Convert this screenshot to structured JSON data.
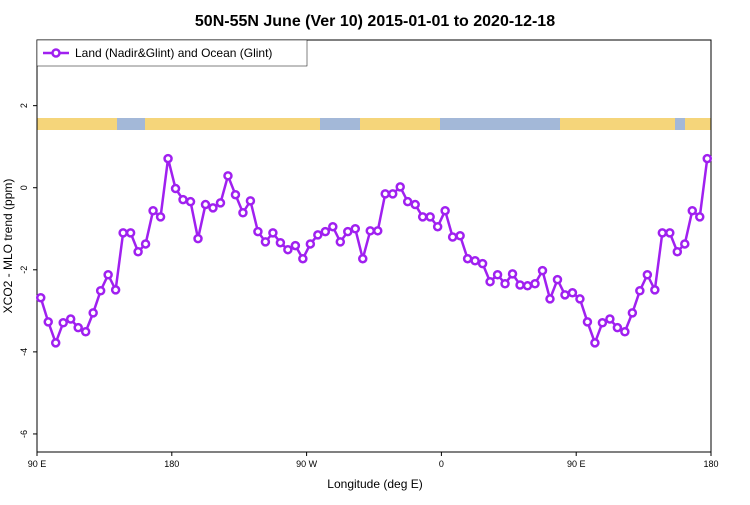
{
  "chart_data": {
    "type": "line",
    "title": "50N-55N June (Ver 10)   2015-01-01 to 2020-12-18",
    "x_label": "Longitude (deg E)",
    "y_label": "XCO2 - MLO trend (ppm)",
    "xlim": [
      90,
      540
    ],
    "ylim": [
      -6.44,
      3.6
    ],
    "xticks": [
      {
        "value": 90,
        "label": "90 E"
      },
      {
        "value": 180,
        "label": "180"
      },
      {
        "value": 270,
        "label": "90 W"
      },
      {
        "value": 360,
        "label": "0"
      },
      {
        "value": 450,
        "label": "90 E"
      },
      {
        "value": 540,
        "label": "180"
      }
    ],
    "yticks": [
      2,
      0,
      -2,
      -4,
      -6
    ],
    "legend_position": "top-left",
    "series": [
      {
        "name": "Land (Nadir&Glint) and Ocean (Glint)",
        "color": "#a020f0",
        "x": [
          92.5,
          97.5,
          102.5,
          107.5,
          112.5,
          117.5,
          122.5,
          127.5,
          132.5,
          137.5,
          142.5,
          147.5,
          152.5,
          157.5,
          162.5,
          167.5,
          172.5,
          177.5,
          182.5,
          187.5,
          192.5,
          197.5,
          202.5,
          207.5,
          212.5,
          217.5,
          222.5,
          227.5,
          232.5,
          237.5,
          242.5,
          247.5,
          252.5,
          257.5,
          262.5,
          267.5,
          272.5,
          277.5,
          282.5,
          287.5,
          292.5,
          297.5,
          302.5,
          307.5,
          312.5,
          317.5,
          322.5,
          327.5,
          332.5,
          337.5,
          342.5,
          347.5,
          352.5,
          357.5,
          362.5,
          367.5,
          372.5,
          377.5,
          382.5,
          387.5,
          392.5,
          397.5,
          402.5,
          407.5,
          412.5,
          417.5,
          422.5,
          427.5,
          432.5,
          437.5,
          442.5,
          447.5,
          452.5,
          457.5,
          462.5,
          467.5,
          472.5,
          477.5,
          482.5,
          487.5,
          492.5,
          497.5,
          502.5,
          507.5,
          512.5,
          517.5,
          522.5,
          527.5,
          532.5,
          537.5
        ],
        "values": [
          -2.68,
          -3.27,
          -3.78,
          -3.29,
          -3.2,
          -3.41,
          -3.51,
          -3.05,
          -2.51,
          -2.12,
          -2.49,
          -1.1,
          -1.1,
          -1.56,
          -1.37,
          -0.56,
          -0.71,
          0.71,
          -0.02,
          -0.29,
          -0.34,
          -1.24,
          -0.41,
          -0.49,
          -0.37,
          0.29,
          -0.17,
          -0.61,
          -0.32,
          -1.07,
          -1.32,
          -1.1,
          -1.34,
          -1.51,
          -1.41,
          -1.73,
          -1.37,
          -1.15,
          -1.07,
          -0.95,
          -1.32,
          -1.07,
          -1.0,
          -1.73,
          -1.05,
          -1.05,
          -0.15,
          -0.15,
          0.02,
          -0.34,
          -0.41,
          -0.71,
          -0.71,
          -0.95,
          -0.56,
          -1.2,
          -1.17,
          -1.73,
          -1.78,
          -1.85,
          -2.29,
          -2.12,
          -2.34,
          -2.1,
          -2.37,
          -2.39,
          -2.34,
          -2.02,
          -2.71,
          -2.24,
          -2.61,
          -2.56,
          -2.71,
          -3.27,
          -3.78,
          -3.29,
          -3.2,
          -3.41,
          -3.51,
          -3.05,
          -2.51,
          -2.12,
          -2.49,
          -1.1,
          -1.1,
          -1.56,
          -1.37,
          -0.56,
          -0.71,
          0.71
        ]
      }
    ]
  }
}
